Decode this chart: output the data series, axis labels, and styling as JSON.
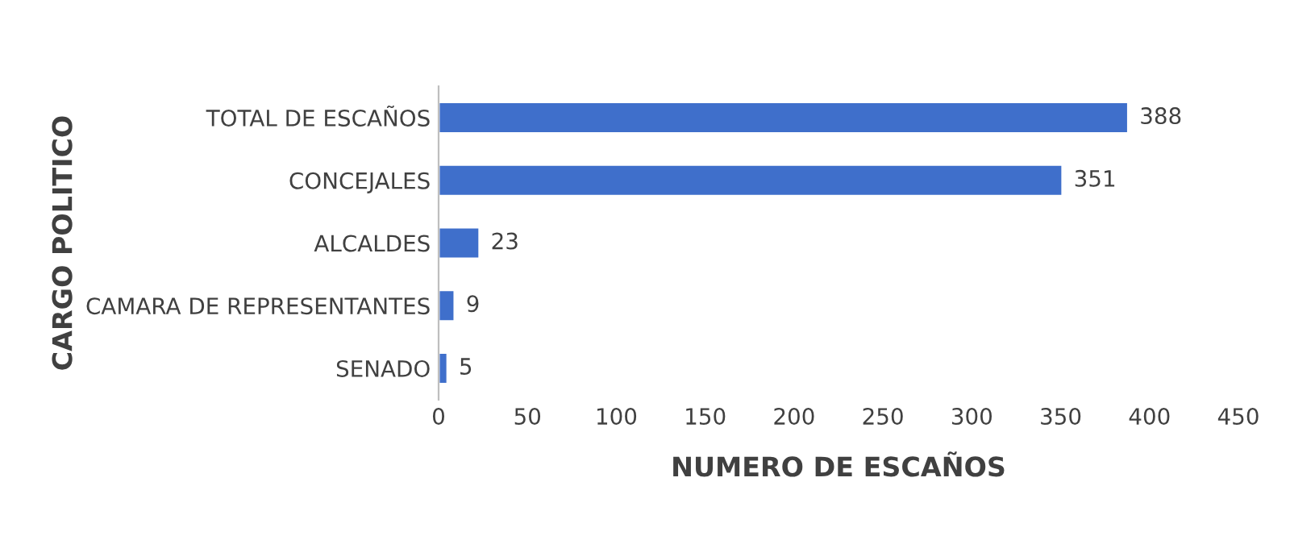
{
  "chart_data": {
    "type": "bar",
    "orientation": "horizontal",
    "xlabel": "NUMERO DE ESCAÑOS",
    "ylabel": "CARGO POLITICO",
    "categories": [
      "TOTAL DE ESCAÑOS",
      "CONCEJALES",
      "ALCALDES",
      "CAMARA DE REPRESENTANTES",
      "SENADO"
    ],
    "values": [
      388,
      351,
      23,
      9,
      5
    ],
    "color": "#3f6fcb",
    "data_labels": true,
    "grid": false,
    "xlim": [
      0,
      450
    ],
    "xticks": [
      0,
      50,
      100,
      150,
      200,
      250,
      300,
      350,
      400,
      450
    ]
  }
}
